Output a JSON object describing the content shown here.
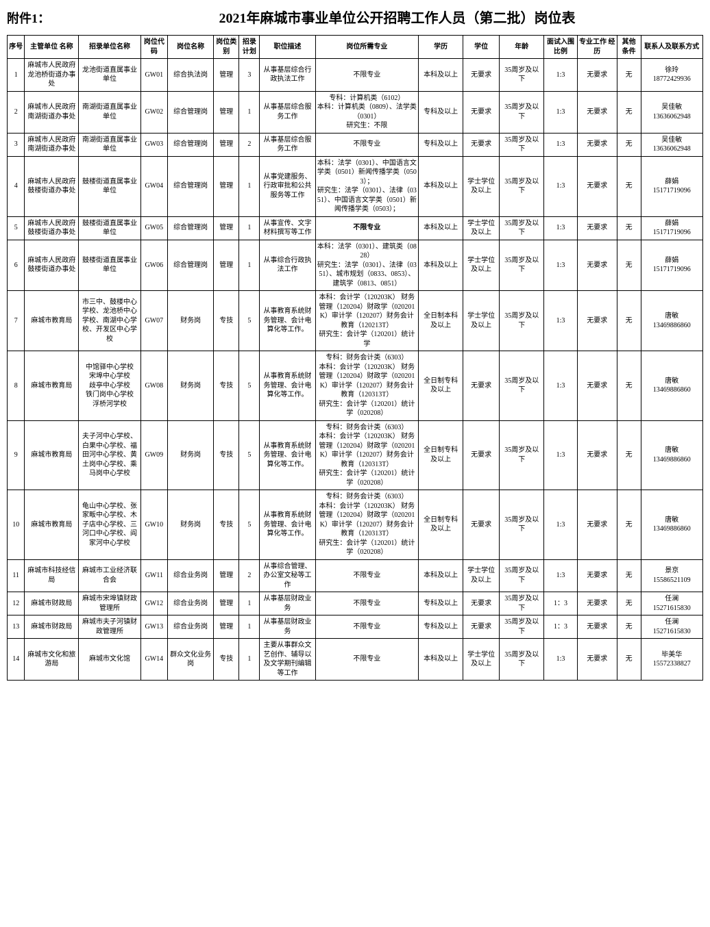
{
  "header": {
    "attachment_label": "附件1：",
    "title": "2021年麻城市事业单位公开招聘工作人员（第二批）岗位表"
  },
  "columns": [
    "序号",
    "主管单位 名称",
    "招录单位名称",
    "岗位代码",
    "岗位名称",
    "岗位类别",
    "招录计划",
    "职位描述",
    "岗位所需专业",
    "学历",
    "学位",
    "年龄",
    "面试入围比例",
    "专业工作 经历",
    "其他条件",
    "联系人及联系方式"
  ],
  "rows": [
    {
      "seq": "1",
      "dept": "麻城市人民政府龙池桥街道办事处",
      "unit": "龙池街道直属事业单位",
      "code": "GW01",
      "pname": "综合执法岗",
      "ptype": "管理",
      "plan": "3",
      "desc": "从事基层综合行政执法工作",
      "major": "不限专业",
      "edu": "本科及以上",
      "degree": "无要求",
      "age": "35周岁及以下",
      "ratio": "1:3",
      "exp": "无要求",
      "other": "无",
      "contact": "徐玲\n18772429936"
    },
    {
      "seq": "2",
      "dept": "麻城市人民政府南湖街道办事处",
      "unit": "南湖街道直属事业单位",
      "code": "GW02",
      "pname": "综合管理岗",
      "ptype": "管理",
      "plan": "1",
      "desc": "从事基层综合服务工作",
      "major": "专科：计算机类（6102）\n本科：计算机类（0809）、法学类（0301）\n研究生：不限",
      "edu": "专科及以上",
      "degree": "无要求",
      "age": "35周岁及以下",
      "ratio": "1:3",
      "exp": "无要求",
      "other": "无",
      "contact": "吴佳敏\n13636062948"
    },
    {
      "seq": "3",
      "dept": "麻城市人民政府南湖街道办事处",
      "unit": "南湖街道直属事业单位",
      "code": "GW03",
      "pname": "综合管理岗",
      "ptype": "管理",
      "plan": "2",
      "desc": "从事基层综合服务工作",
      "major": "不限专业",
      "edu": "专科及以上",
      "degree": "无要求",
      "age": "35周岁及以下",
      "ratio": "1:3",
      "exp": "无要求",
      "other": "无",
      "contact": "吴佳敏\n13636062948"
    },
    {
      "seq": "4",
      "dept": "麻城市人民政府鼓楼街道办事处",
      "unit": "鼓楼街道直属事业单位",
      "code": "GW04",
      "pname": "综合管理岗",
      "ptype": "管理",
      "plan": "1",
      "desc": "从事党建服务、行政审批和公共服务等工作",
      "major": "本科：法学（0301）、中国语言文学类（0501）新闻传播学类（0503）；\n研究生：法学（0301）、法律（0351）、中国语言文学类（0501）新闻传播学类（0503）；",
      "edu": "本科及以上",
      "degree": "学士学位及以上",
      "age": "35周岁及以下",
      "ratio": "1:3",
      "exp": "无要求",
      "other": "无",
      "contact": "薛娟\n15171719096"
    },
    {
      "seq": "5",
      "dept": "麻城市人民政府鼓楼街道办事处",
      "unit": "鼓楼街道直属事业单位",
      "code": "GW05",
      "pname": "综合管理岗",
      "ptype": "管理",
      "plan": "1",
      "desc": "从事宣传、文字材料撰写等工作",
      "major": "不限专业",
      "major_bold": true,
      "edu": "本科及以上",
      "degree": "学士学位及以上",
      "age": "35周岁及以下",
      "ratio": "1:3",
      "exp": "无要求",
      "other": "无",
      "contact": "薛娟\n15171719096"
    },
    {
      "seq": "6",
      "dept": "麻城市人民政府鼓楼街道办事处",
      "unit": "鼓楼街道直属事业单位",
      "code": "GW06",
      "pname": "综合管理岗",
      "ptype": "管理",
      "plan": "1",
      "desc": "从事综合行政执法工作",
      "major": "本科：法学（0301）、建筑类（0828）\n研究生：法学（0301）、法律（0351）、城市规划（0833、0853）、建筑学（0813、0851）",
      "edu": "本科及以上",
      "degree": "学士学位及以上",
      "age": "35周岁及以下",
      "ratio": "1:3",
      "exp": "无要求",
      "other": "无",
      "contact": "薛娟\n15171719096"
    },
    {
      "seq": "7",
      "dept": "麻城市教育局",
      "unit": "市三中、鼓楼中心学校、龙池桥中心学校、南湖中心学校、开发区中心学校",
      "code": "GW07",
      "pname": "财务岗",
      "ptype": "专技",
      "plan": "5",
      "desc": "从事教育系统财务管理、会计电算化等工作。",
      "major": "本科：会计学（120203K） 财务管理（120204）财政学（020201K）审计学（120207）财务会计教育（120213T）\n研究生：会计学（120201）统计学",
      "edu": "全日制本科及以上",
      "degree": "学士学位及以上",
      "age": "35周岁及以下",
      "ratio": "1:3",
      "exp": "无要求",
      "other": "无",
      "contact": "唐敏\n13469886860"
    },
    {
      "seq": "8",
      "dept": "麻城市教育局",
      "unit": "中馆驿中心学校\n宋埠中心学校\n歧亭中心学校\n铁门岗中心学校\n浮桥河学校",
      "code": "GW08",
      "pname": "财务岗",
      "ptype": "专技",
      "plan": "5",
      "desc": "从事教育系统财务管理、会计电算化等工作。",
      "major": "专科：财务会计类（6303）\n本科：会计学（120203K） 财务管理（120204）财政学（020201K）审计学（120207）财务会计教育（120313T）\n研究生：会计学（120201）统计学（020208）",
      "edu": "全日制专科及以上",
      "degree": "无要求",
      "age": "35周岁及以下",
      "ratio": "1:3",
      "exp": "无要求",
      "other": "无",
      "contact": "唐敏\n13469886860"
    },
    {
      "seq": "9",
      "dept": "麻城市教育局",
      "unit": "夫子河中心学校、白果中心学校、福田河中心学校、黄土岗中心学校、乘马岗中心学校",
      "code": "GW09",
      "pname": "财务岗",
      "ptype": "专技",
      "plan": "5",
      "desc": "从事教育系统财务管理、会计电算化等工作。",
      "major": "专科：财务会计类（6303）\n本科：会计学（120203K） 财务管理（120204）财政学（020201K）审计学（120207）财务会计教育（120313T）\n研究生：会计学（120201）统计学（020208）",
      "edu": "全日制专科及以上",
      "degree": "无要求",
      "age": "35周岁及以下",
      "ratio": "1:3",
      "exp": "无要求",
      "other": "无",
      "contact": "唐敏\n13469886860"
    },
    {
      "seq": "10",
      "dept": "麻城市教育局",
      "unit": "龟山中心学校、张家畈中心学校、木子店中心学校、三河口中心学校、阎家河中心学校",
      "code": "GW10",
      "pname": "财务岗",
      "ptype": "专技",
      "plan": "5",
      "desc": "从事教育系统财务管理、会计电算化等工作。",
      "major": "专科：财务会计类（6303）\n本科：会计学（120203K） 财务管理（120204）财政学（020201K）审计学（120207）财务会计教育（120313T）\n研究生：会计学（120201）统计学（020208）",
      "edu": "全日制专科及以上",
      "degree": "无要求",
      "age": "35周岁及以下",
      "ratio": "1:3",
      "exp": "无要求",
      "other": "无",
      "contact": "唐敏\n13469886860"
    },
    {
      "seq": "11",
      "dept": "麻城市科技经信局",
      "unit": "麻城市工业经济联合会",
      "code": "GW11",
      "pname": "综合业务岗",
      "ptype": "管理",
      "plan": "2",
      "desc": "从事综合管理、办公室文秘等工作",
      "major": "不限专业",
      "edu": "本科及以上",
      "degree": "学士学位及以上",
      "age": "35周岁及以下",
      "ratio": "1:3",
      "exp": "无要求",
      "other": "无",
      "contact": "景京\n15586521109"
    },
    {
      "seq": "12",
      "dept": "麻城市财政局",
      "unit": "麻城市宋埠镇财政管理所",
      "code": "GW12",
      "pname": "综合业务岗",
      "ptype": "管理",
      "plan": "1",
      "desc": "从事基层财政业务",
      "major": "不限专业",
      "edu": "专科及以上",
      "degree": "无要求",
      "age": "35周岁及以下",
      "ratio": "1：3",
      "exp": "无要求",
      "other": "无",
      "contact": "任澜\n15271615830"
    },
    {
      "seq": "13",
      "dept": "麻城市财政局",
      "unit": "麻城市夫子河镇财政管理所",
      "code": "GW13",
      "pname": "综合业务岗",
      "ptype": "管理",
      "plan": "1",
      "desc": "从事基层财政业务",
      "major": "不限专业",
      "edu": "专科及以上",
      "degree": "无要求",
      "age": "35周岁及以下",
      "ratio": "1：3",
      "exp": "无要求",
      "other": "无",
      "contact": "任澜\n15271615830"
    },
    {
      "seq": "14",
      "dept": "麻城市文化和旅游局",
      "unit": "麻城市文化馆",
      "code": "GW14",
      "pname": "群众文化业务岗",
      "ptype": "专技",
      "plan": "1",
      "desc": "主要从事群众文艺创作、辅导以及文学期刊编辑等工作",
      "major": "不限专业",
      "edu": "本科及以上",
      "degree": "学士学位及以上",
      "age": "35周岁及以下",
      "ratio": "1:3",
      "exp": "无要求",
      "other": "无",
      "contact": "毕美华\n15572338827"
    }
  ],
  "style": {
    "background_color": "#ffffff",
    "border_color": "#000000",
    "header_fontsize": 20,
    "body_fontsize": 10,
    "attachment_fontsize": 18,
    "font_family": "SimSun"
  }
}
